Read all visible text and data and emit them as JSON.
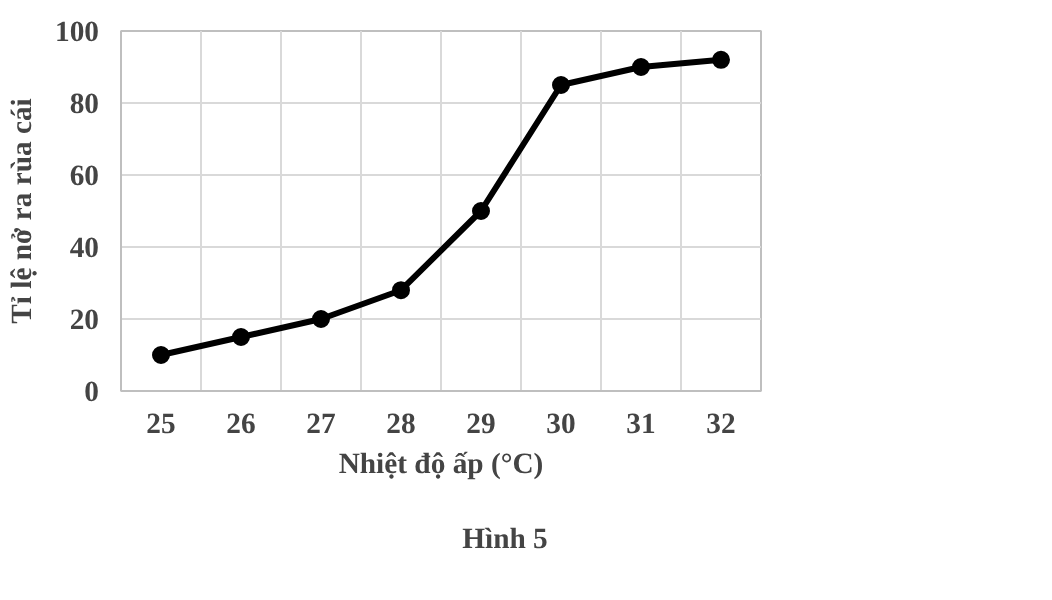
{
  "chart_data": {
    "type": "line",
    "categories": [
      "25",
      "26",
      "27",
      "28",
      "29",
      "30",
      "31",
      "32"
    ],
    "series": [
      {
        "color": "#000000",
        "values": [
          10,
          15,
          20,
          28,
          50,
          85,
          90,
          92
        ]
      }
    ],
    "ylim": [
      0,
      100
    ],
    "yticks": [
      0,
      20,
      40,
      60,
      80,
      100
    ],
    "grid": true,
    "marker": "circle",
    "line_style": "solid",
    "xlabel": "Nhiệt độ ấp (°C)",
    "ylabel": "Tỉ lệ nở ra rùa cái",
    "annotations": [
      "Hình 5"
    ]
  }
}
